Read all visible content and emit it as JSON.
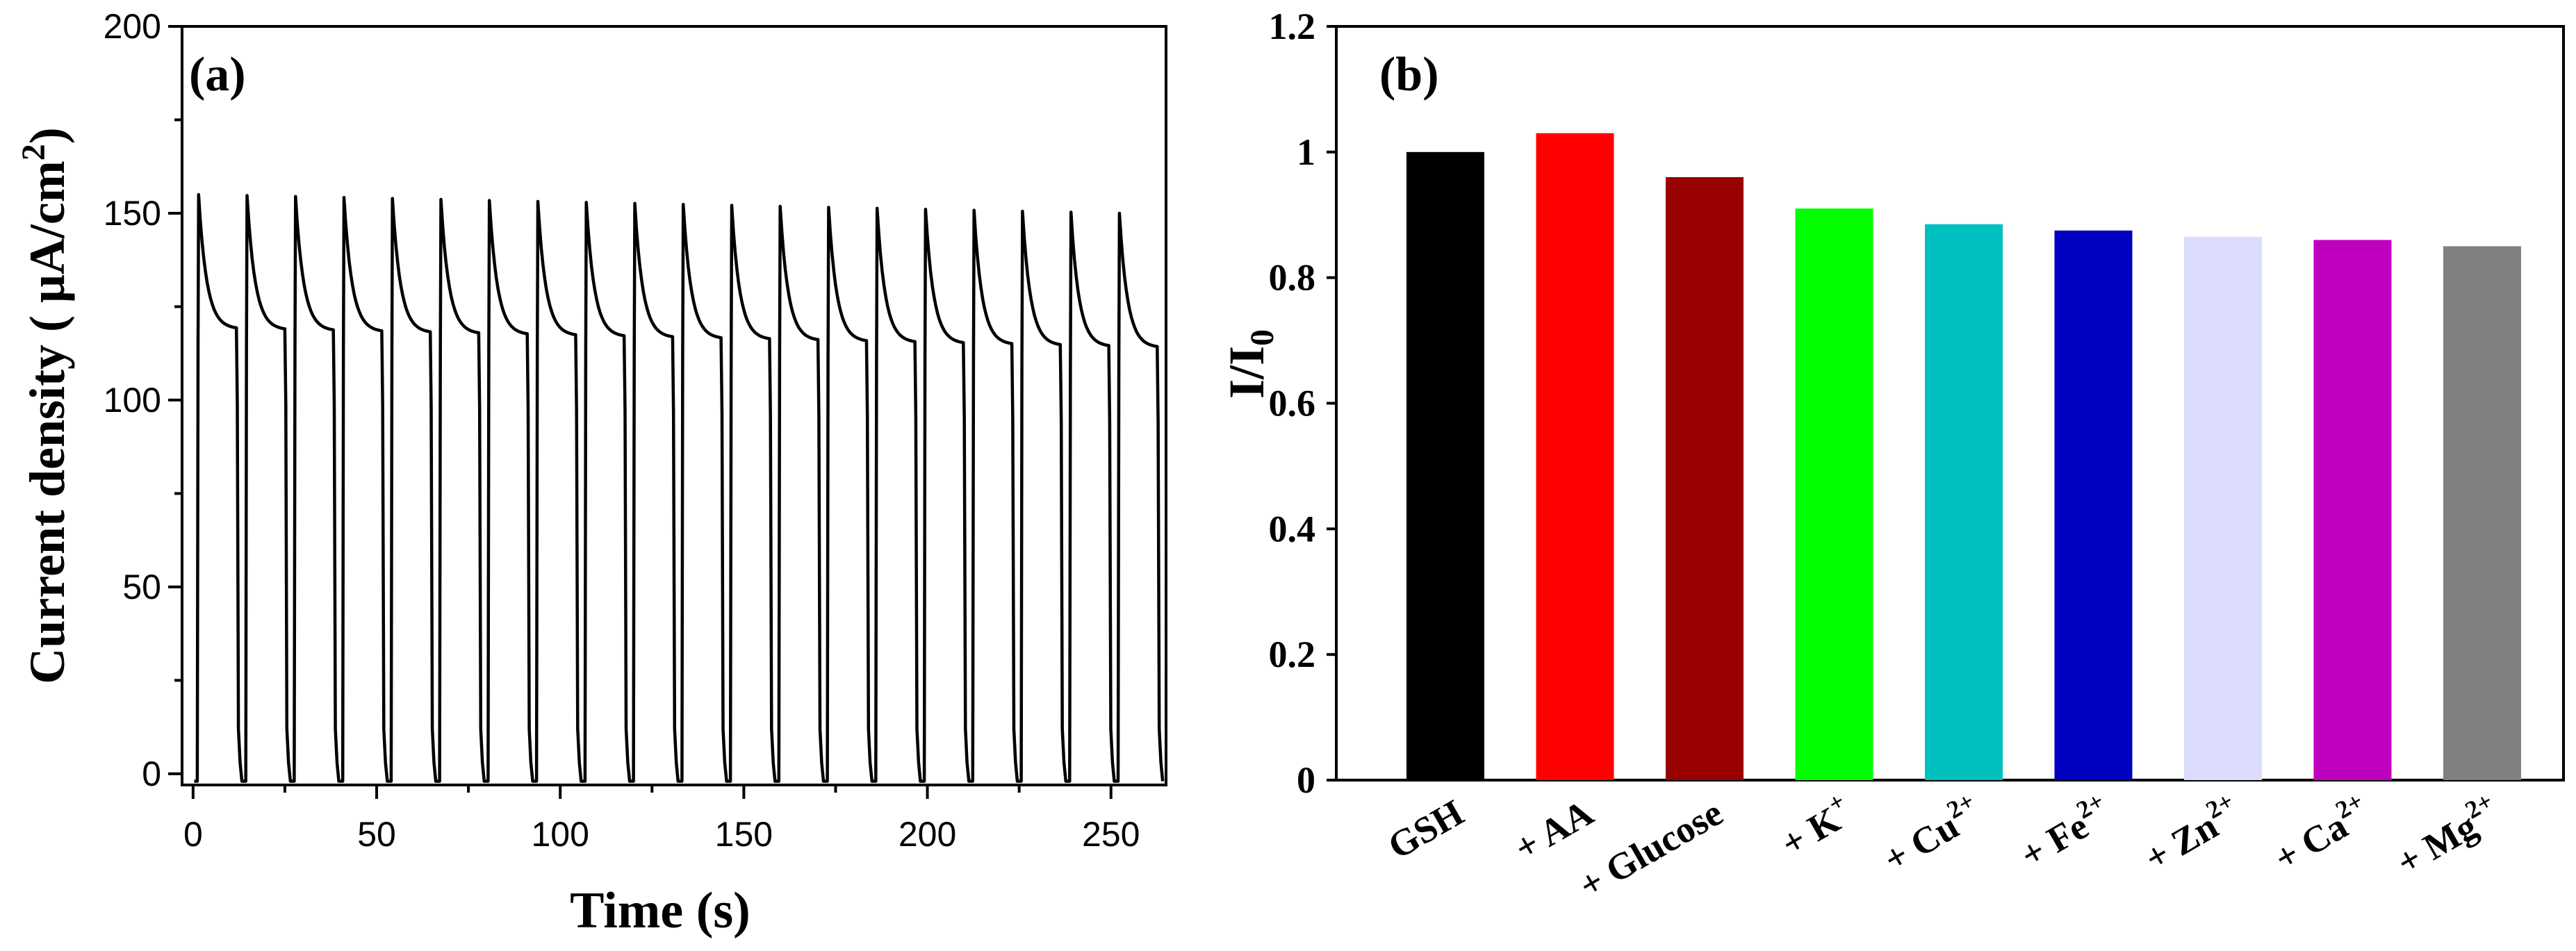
{
  "chart_data": [
    {
      "panel": "(a)",
      "type": "line",
      "title": "",
      "xlabel": "Time (s)",
      "ylabel": "Current density ( μA/cm²)",
      "ylabel_parts": {
        "main": "Current density ( μA/cm",
        "sup": "2",
        "end": ")"
      },
      "xlim": [
        -3,
        265
      ],
      "ylim": [
        -3,
        200
      ],
      "xticks": [
        0,
        50,
        100,
        150,
        200,
        250
      ],
      "yticks": [
        0,
        50,
        100,
        150,
        200
      ],
      "cycle": {
        "first_peak_time": 1.5,
        "period": 13.2,
        "count": 20,
        "peak_start": 155,
        "peak_end": 150,
        "plateau_start": 119,
        "plateau_end": 114,
        "baseline": -2,
        "on_duration": 10.3
      },
      "color": "#000000"
    },
    {
      "panel": "(b)",
      "type": "bar",
      "title": "",
      "xlabel": "",
      "ylabel": "I/I₀",
      "ylabel_parts": {
        "main": "I/I",
        "sub": "0"
      },
      "ylim": [
        0,
        1.2
      ],
      "yticks": [
        0,
        0.2,
        0.4,
        0.6,
        0.8,
        1,
        1.2
      ],
      "ytick_labels": [
        "0",
        "0.2",
        "0.4",
        "0.6",
        "0.8",
        "1",
        "1.2"
      ],
      "categories": [
        {
          "base": "GSH",
          "sup": ""
        },
        {
          "base": "+ AA",
          "sup": ""
        },
        {
          "base": "+ Glucose",
          "sup": ""
        },
        {
          "base": "+ K",
          "sup": "+"
        },
        {
          "base": "+ Cu",
          "sup": "2+"
        },
        {
          "base": "+ Fe",
          "sup": "2+"
        },
        {
          "base": "+ Zn",
          "sup": "2+"
        },
        {
          "base": "+ Ca",
          "sup": "2+"
        },
        {
          "base": "+ Mg",
          "sup": "2+"
        }
      ],
      "values": [
        1.0,
        1.03,
        0.96,
        0.91,
        0.885,
        0.875,
        0.865,
        0.86,
        0.85
      ],
      "colors": [
        "#000000",
        "#ff0000",
        "#990000",
        "#00ff00",
        "#00bfbf",
        "#0000c0",
        "#dcdcff",
        "#bf00bf",
        "#808080"
      ]
    }
  ]
}
